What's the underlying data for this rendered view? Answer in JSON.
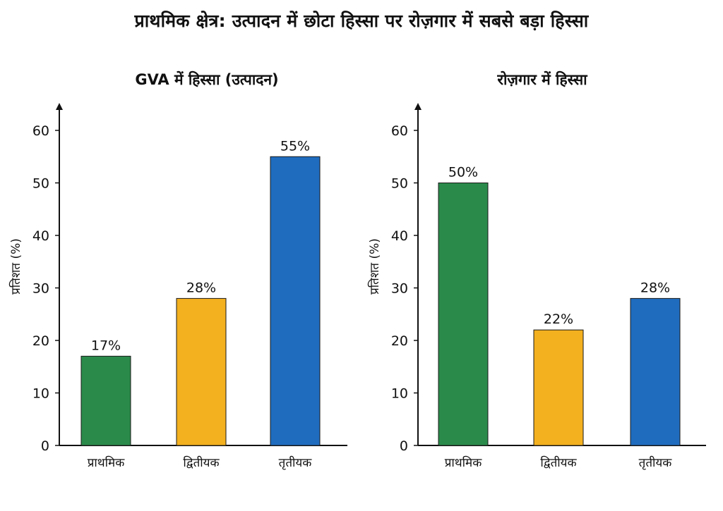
{
  "page_title": "प्राथमिक क्षेत्र: उत्पादन में छोटा हिस्सा पर रोज़गार में सबसे बड़ा हिस्सा",
  "colors": {
    "primary_sector": "#2a8a4a",
    "secondary_sector": "#f3b01f",
    "tertiary_sector": "#1f6cbf",
    "axis": "#111111"
  },
  "chart_data": [
    {
      "type": "bar",
      "title": "GVA में हिस्सा (उत्पादन)",
      "ylabel": "प्रतिशत (%)",
      "xlabel": "",
      "ylim": [
        0,
        60
      ],
      "yticks": [
        0,
        10,
        20,
        30,
        40,
        50,
        60
      ],
      "categories": [
        "प्राथमिक",
        "द्वितीयक",
        "तृतीयक"
      ],
      "values": [
        17,
        28,
        55
      ],
      "data_labels": [
        "17%",
        "28%",
        "55%"
      ],
      "bar_colors": [
        "#2a8a4a",
        "#f3b01f",
        "#1f6cbf"
      ],
      "grid": false
    },
    {
      "type": "bar",
      "title": "रोज़गार में हिस्सा",
      "ylabel": "प्रतिशत (%)",
      "xlabel": "",
      "ylim": [
        0,
        60
      ],
      "yticks": [
        0,
        10,
        20,
        30,
        40,
        50,
        60
      ],
      "categories": [
        "प्राथमिक",
        "द्वितीयक",
        "तृतीयक"
      ],
      "values": [
        50,
        22,
        28
      ],
      "data_labels": [
        "50%",
        "22%",
        "28%"
      ],
      "bar_colors": [
        "#2a8a4a",
        "#f3b01f",
        "#1f6cbf"
      ],
      "grid": false
    }
  ]
}
